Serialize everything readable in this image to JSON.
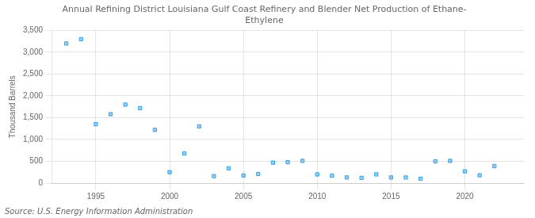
{
  "chart_data": {
    "type": "scatter",
    "title": "Annual Refining District Louisiana Gulf Coast Refinery and Blender Net Production of Ethane-\nEthylene",
    "ylabel": "Thousand Barrels",
    "annotations": [
      "Source: U.S. Energy Information Administration"
    ],
    "marker": "square",
    "grid": true,
    "x": [
      1993,
      1994,
      1995,
      1996,
      1997,
      1998,
      1999,
      2000,
      2001,
      2002,
      2003,
      2004,
      2005,
      2006,
      2007,
      2008,
      2009,
      2010,
      2011,
      2012,
      2013,
      2014,
      2015,
      2016,
      2017,
      2018,
      2019,
      2020,
      2021,
      2022
    ],
    "values": [
      3200,
      3300,
      1350,
      1580,
      1800,
      1720,
      1220,
      250,
      680,
      1300,
      160,
      340,
      175,
      210,
      470,
      480,
      510,
      200,
      170,
      130,
      120,
      200,
      130,
      130,
      100,
      500,
      510,
      270,
      180,
      390
    ],
    "xlim": [
      1992.0,
      2024.0
    ],
    "xticks": [
      1995,
      2000,
      2005,
      2010,
      2015,
      2020
    ],
    "ylim": [
      0,
      3500
    ],
    "yticks": [
      0,
      500,
      {
        "value": 1000,
        "label": "1,000"
      },
      {
        "value": 1500,
        "label": "1,500"
      },
      {
        "value": 2000,
        "label": "2,000"
      },
      {
        "value": 2500,
        "label": "2,500"
      },
      {
        "value": 3000,
        "label": "3,000"
      },
      {
        "value": 3500,
        "label": "3,500"
      }
    ]
  }
}
